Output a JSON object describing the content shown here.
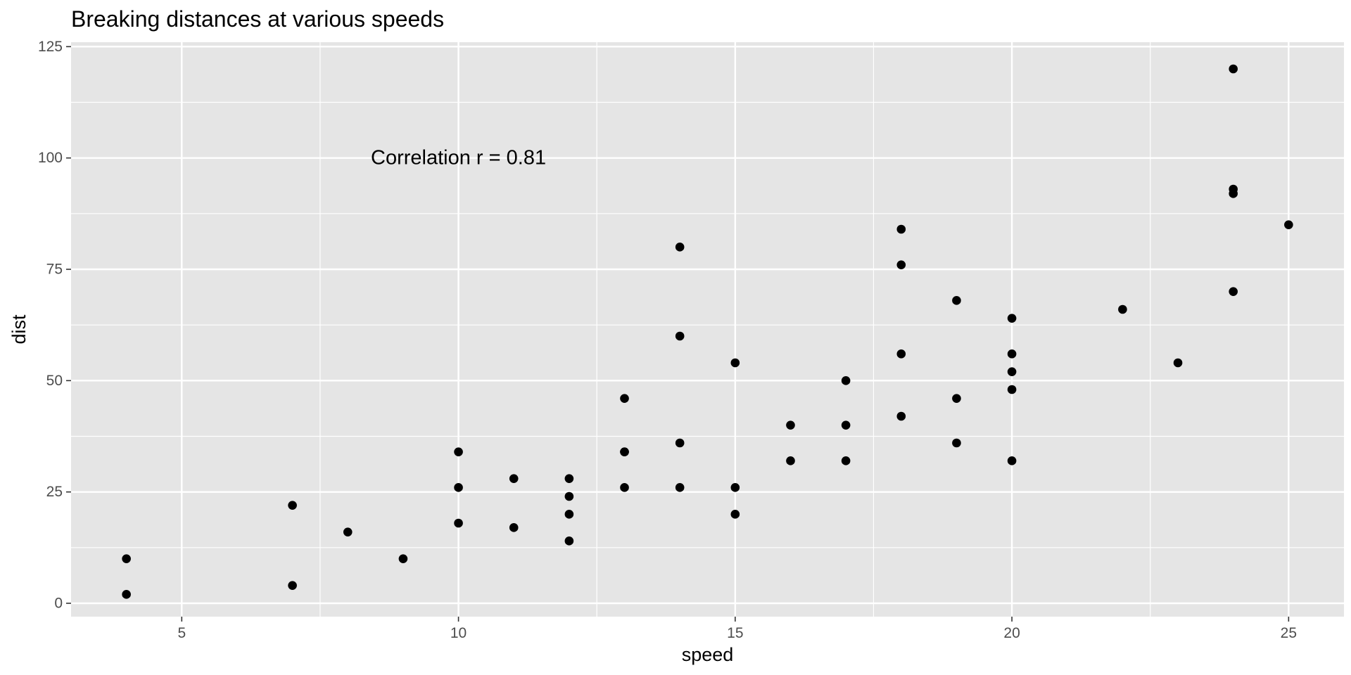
{
  "chart_data": {
    "type": "scatter",
    "title": "Breaking distances at various speeds",
    "xlabel": "speed",
    "ylabel": "dist",
    "xlim": [
      3,
      26
    ],
    "ylim": [
      -3,
      126
    ],
    "x_ticks": [
      5,
      10,
      15,
      20,
      25
    ],
    "y_ticks": [
      0,
      25,
      50,
      75,
      100,
      125
    ],
    "x_tick_labels": [
      "5",
      "10",
      "15",
      "20",
      "25"
    ],
    "y_tick_labels": [
      "0",
      "25",
      "50",
      "75",
      "100",
      "125"
    ],
    "x_minor_grid": [
      7.5,
      12.5,
      17.5,
      22.5
    ],
    "y_minor_grid": [
      12.5,
      37.5,
      62.5,
      87.5,
      112.5
    ],
    "grid": true,
    "annotation": {
      "text": "Correlation r = 0.81",
      "x": 10,
      "y": 100
    },
    "colors": {
      "panel_bg": "#e5e5e5",
      "grid": "#ffffff",
      "point": "#000000"
    },
    "points": [
      {
        "x": 4,
        "y": 2
      },
      {
        "x": 4,
        "y": 10
      },
      {
        "x": 7,
        "y": 4
      },
      {
        "x": 7,
        "y": 22
      },
      {
        "x": 8,
        "y": 16
      },
      {
        "x": 9,
        "y": 10
      },
      {
        "x": 10,
        "y": 18
      },
      {
        "x": 10,
        "y": 26
      },
      {
        "x": 10,
        "y": 34
      },
      {
        "x": 11,
        "y": 17
      },
      {
        "x": 11,
        "y": 28
      },
      {
        "x": 12,
        "y": 14
      },
      {
        "x": 12,
        "y": 20
      },
      {
        "x": 12,
        "y": 24
      },
      {
        "x": 12,
        "y": 28
      },
      {
        "x": 13,
        "y": 26
      },
      {
        "x": 13,
        "y": 34
      },
      {
        "x": 13,
        "y": 34
      },
      {
        "x": 13,
        "y": 46
      },
      {
        "x": 14,
        "y": 26
      },
      {
        "x": 14,
        "y": 36
      },
      {
        "x": 14,
        "y": 60
      },
      {
        "x": 14,
        "y": 80
      },
      {
        "x": 15,
        "y": 20
      },
      {
        "x": 15,
        "y": 26
      },
      {
        "x": 15,
        "y": 54
      },
      {
        "x": 16,
        "y": 32
      },
      {
        "x": 16,
        "y": 40
      },
      {
        "x": 17,
        "y": 32
      },
      {
        "x": 17,
        "y": 40
      },
      {
        "x": 17,
        "y": 50
      },
      {
        "x": 18,
        "y": 42
      },
      {
        "x": 18,
        "y": 56
      },
      {
        "x": 18,
        "y": 76
      },
      {
        "x": 18,
        "y": 84
      },
      {
        "x": 19,
        "y": 36
      },
      {
        "x": 19,
        "y": 46
      },
      {
        "x": 19,
        "y": 68
      },
      {
        "x": 20,
        "y": 32
      },
      {
        "x": 20,
        "y": 48
      },
      {
        "x": 20,
        "y": 52
      },
      {
        "x": 20,
        "y": 56
      },
      {
        "x": 20,
        "y": 64
      },
      {
        "x": 22,
        "y": 66
      },
      {
        "x": 23,
        "y": 54
      },
      {
        "x": 24,
        "y": 70
      },
      {
        "x": 24,
        "y": 92
      },
      {
        "x": 24,
        "y": 93
      },
      {
        "x": 24,
        "y": 120
      },
      {
        "x": 25,
        "y": 85
      }
    ]
  }
}
